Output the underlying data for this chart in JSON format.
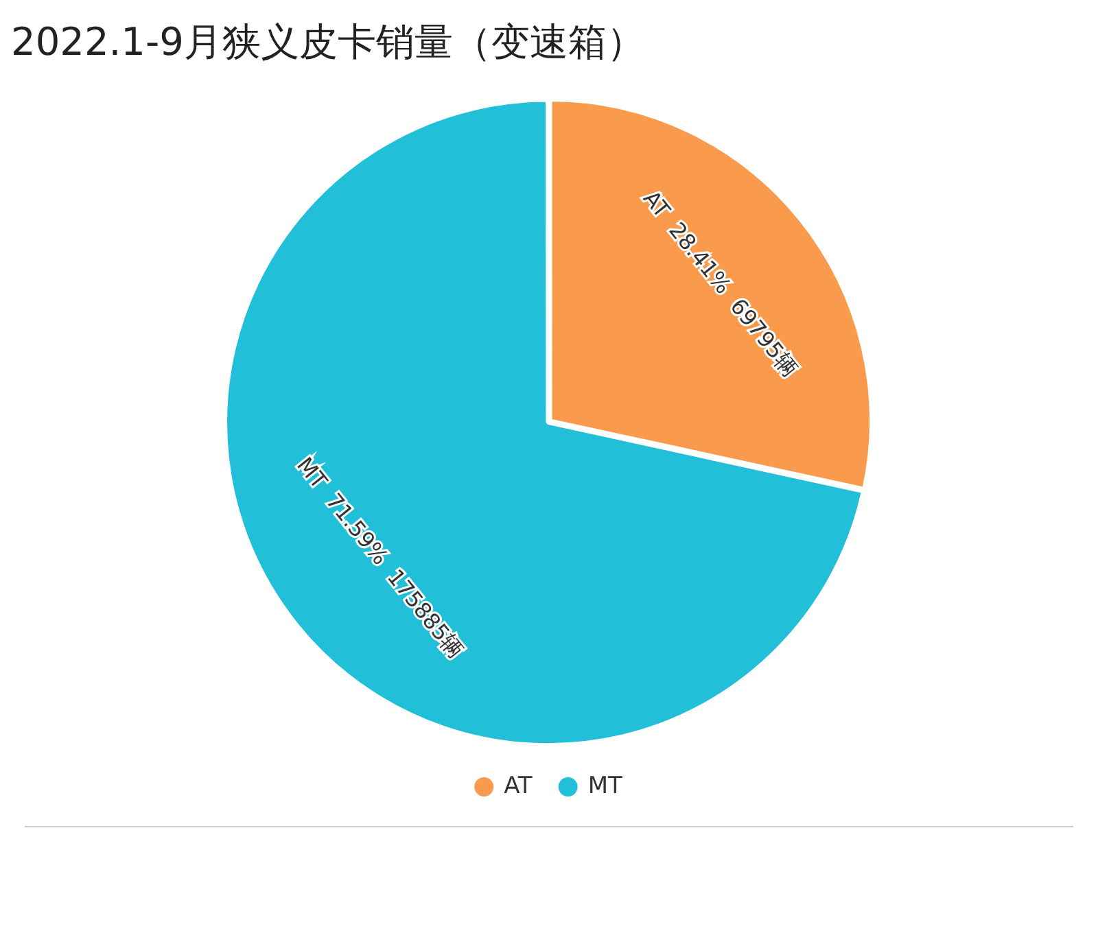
{
  "chart_data": {
    "type": "pie",
    "title": "2022.1-9月狭义皮卡销量（变速箱）",
    "categories": [
      "AT",
      "MT"
    ],
    "values": [
      69795,
      175885
    ],
    "colors": [
      "#fa9a4c",
      "#22bfd9"
    ],
    "value_labels": [
      "AT  28.41%  69795辆",
      "MT  71.59%  175885辆"
    ],
    "legend": "bottom"
  }
}
